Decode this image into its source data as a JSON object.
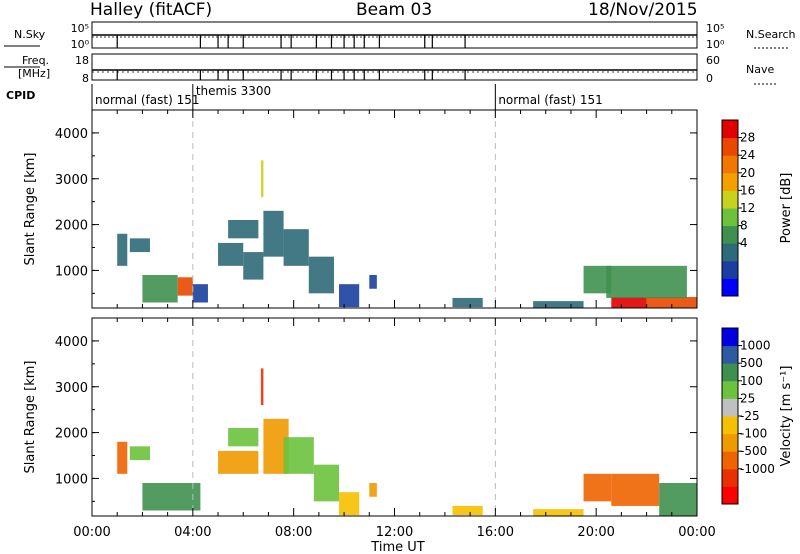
{
  "header": {
    "site": "Halley (fitACF)",
    "beam": "Beam 03",
    "date": "18/Nov/2015"
  },
  "strips": {
    "nsky_label": "N.Sky",
    "nsky_ticks": [
      "10^5",
      "10^0"
    ],
    "nsearch_label": "N.Search",
    "nsearch_ticks": [
      "10^5",
      "10^0"
    ],
    "freq_label_1": "Freq.",
    "freq_label_2": "[MHz]",
    "freq_ticks": [
      "18",
      "8"
    ],
    "nave_label": "Nave",
    "nave_ticks": [
      "60",
      "0"
    ],
    "cpid_label": "CPID",
    "cpid_segments": [
      {
        "label": "normal (fast) 151",
        "start_hour": 0
      },
      {
        "label": "themis 3300",
        "start_hour": 4
      },
      {
        "label": "normal (fast) 151",
        "start_hour": 16
      }
    ]
  },
  "chart_data": [
    {
      "type": "heatmap",
      "panel": "power",
      "ylabel": "Slant Range [km]",
      "xlabel": "",
      "ylim": [
        180,
        4500
      ],
      "yticks": [
        "1000",
        "2000",
        "3000",
        "4000"
      ],
      "xlim": [
        0,
        24
      ],
      "xticks": [
        "00:00",
        "04:00",
        "08:00",
        "12:00",
        "16:00",
        "20:00",
        "00:00"
      ],
      "colorbar": {
        "label": "Power [dB]",
        "ticks": [
          "28",
          "24",
          "20",
          "16",
          "12",
          "8",
          "4"
        ],
        "colors": [
          "#0000ff",
          "#1a3fa0",
          "#2e6a78",
          "#3f9050",
          "#6cc23c",
          "#c8d21e",
          "#f5a000",
          "#f07800",
          "#e84800",
          "#e00000"
        ]
      },
      "patches": [
        {
          "start_hour": 1.0,
          "end_hour": 1.4,
          "range_min": 1100,
          "range_max": 1800,
          "level": 2
        },
        {
          "start_hour": 1.5,
          "end_hour": 2.3,
          "range_min": 1400,
          "range_max": 1700,
          "level": 2
        },
        {
          "start_hour": 2.0,
          "end_hour": 3.4,
          "range_min": 300,
          "range_max": 900,
          "level": 3
        },
        {
          "start_hour": 3.4,
          "end_hour": 4.0,
          "range_min": 450,
          "range_max": 850,
          "level": 8
        },
        {
          "start_hour": 4.0,
          "end_hour": 4.6,
          "range_min": 300,
          "range_max": 700,
          "level": 1
        },
        {
          "start_hour": 5.0,
          "end_hour": 6.0,
          "range_min": 1100,
          "range_max": 1600,
          "level": 2
        },
        {
          "start_hour": 5.4,
          "end_hour": 6.6,
          "range_min": 1700,
          "range_max": 2100,
          "level": 2
        },
        {
          "start_hour": 6.0,
          "end_hour": 6.8,
          "range_min": 800,
          "range_max": 1400,
          "level": 2
        },
        {
          "start_hour": 6.7,
          "end_hour": 6.8,
          "range_min": 2600,
          "range_max": 3400,
          "level": 5
        },
        {
          "start_hour": 6.8,
          "end_hour": 7.6,
          "range_min": 1300,
          "range_max": 2300,
          "level": 2
        },
        {
          "start_hour": 7.6,
          "end_hour": 8.6,
          "range_min": 1100,
          "range_max": 1900,
          "level": 2
        },
        {
          "start_hour": 8.6,
          "end_hour": 9.6,
          "range_min": 500,
          "range_max": 1300,
          "level": 2
        },
        {
          "start_hour": 9.8,
          "end_hour": 10.6,
          "range_min": 200,
          "range_max": 700,
          "level": 1
        },
        {
          "start_hour": 11.0,
          "end_hour": 11.3,
          "range_min": 600,
          "range_max": 900,
          "level": 1
        },
        {
          "start_hour": 14.3,
          "end_hour": 15.5,
          "range_min": 200,
          "range_max": 400,
          "level": 2
        },
        {
          "start_hour": 17.5,
          "end_hour": 19.5,
          "range_min": 180,
          "range_max": 330,
          "level": 2
        },
        {
          "start_hour": 19.5,
          "end_hour": 20.6,
          "range_min": 500,
          "range_max": 1100,
          "level": 3
        },
        {
          "start_hour": 20.6,
          "end_hour": 22.0,
          "range_min": 180,
          "range_max": 420,
          "level": 9
        },
        {
          "start_hour": 22.0,
          "end_hour": 24.0,
          "range_min": 180,
          "range_max": 420,
          "level": 8
        },
        {
          "start_hour": 20.4,
          "end_hour": 23.6,
          "range_min": 400,
          "range_max": 1100,
          "level": 3
        }
      ]
    },
    {
      "type": "heatmap",
      "panel": "velocity",
      "ylabel": "Slant Range [km]",
      "xlabel": "Time UT",
      "ylim": [
        180,
        4500
      ],
      "yticks": [
        "1000",
        "2000",
        "3000",
        "4000"
      ],
      "xlim": [
        0,
        24
      ],
      "xticks": [
        "00:00",
        "04:00",
        "08:00",
        "12:00",
        "16:00",
        "20:00",
        "00:00"
      ],
      "colorbar": {
        "label": "Velocity [m s⁻¹]",
        "ticks": [
          "1000",
          "500",
          "100",
          "25",
          "-25",
          "-100",
          "-500",
          "-1000"
        ],
        "colors": [
          "#ff0000",
          "#e83000",
          "#f06400",
          "#f09a00",
          "#f5c000",
          "#c0c0c0",
          "#6cc23c",
          "#3f9050",
          "#2e5aa0",
          "#0000e0"
        ]
      },
      "patches": [
        {
          "start_hour": 1.0,
          "end_hour": 1.4,
          "range_min": 1100,
          "range_max": 1800,
          "level": 2
        },
        {
          "start_hour": 1.5,
          "end_hour": 2.3,
          "range_min": 1400,
          "range_max": 1700,
          "level": 6
        },
        {
          "start_hour": 2.0,
          "end_hour": 4.3,
          "range_min": 300,
          "range_max": 900,
          "level": 7
        },
        {
          "start_hour": 5.0,
          "end_hour": 6.6,
          "range_min": 1100,
          "range_max": 1600,
          "level": 3
        },
        {
          "start_hour": 5.4,
          "end_hour": 6.6,
          "range_min": 1700,
          "range_max": 2100,
          "level": 6
        },
        {
          "start_hour": 6.7,
          "end_hour": 6.8,
          "range_min": 2600,
          "range_max": 3400,
          "level": 1
        },
        {
          "start_hour": 6.8,
          "end_hour": 7.8,
          "range_min": 1100,
          "range_max": 2300,
          "level": 3
        },
        {
          "start_hour": 7.6,
          "end_hour": 8.8,
          "range_min": 1100,
          "range_max": 1900,
          "level": 6
        },
        {
          "start_hour": 8.8,
          "end_hour": 9.8,
          "range_min": 500,
          "range_max": 1300,
          "level": 6
        },
        {
          "start_hour": 9.8,
          "end_hour": 10.6,
          "range_min": 200,
          "range_max": 700,
          "level": 4
        },
        {
          "start_hour": 11.0,
          "end_hour": 11.3,
          "range_min": 600,
          "range_max": 900,
          "level": 3
        },
        {
          "start_hour": 14.3,
          "end_hour": 15.5,
          "range_min": 200,
          "range_max": 400,
          "level": 4
        },
        {
          "start_hour": 17.5,
          "end_hour": 19.5,
          "range_min": 180,
          "range_max": 330,
          "level": 4
        },
        {
          "start_hour": 19.5,
          "end_hour": 20.6,
          "range_min": 500,
          "range_max": 1100,
          "level": 2
        },
        {
          "start_hour": 20.6,
          "end_hour": 22.5,
          "range_min": 400,
          "range_max": 1100,
          "level": 2
        },
        {
          "start_hour": 22.5,
          "end_hour": 24.0,
          "range_min": 180,
          "range_max": 900,
          "level": 7
        }
      ]
    }
  ]
}
